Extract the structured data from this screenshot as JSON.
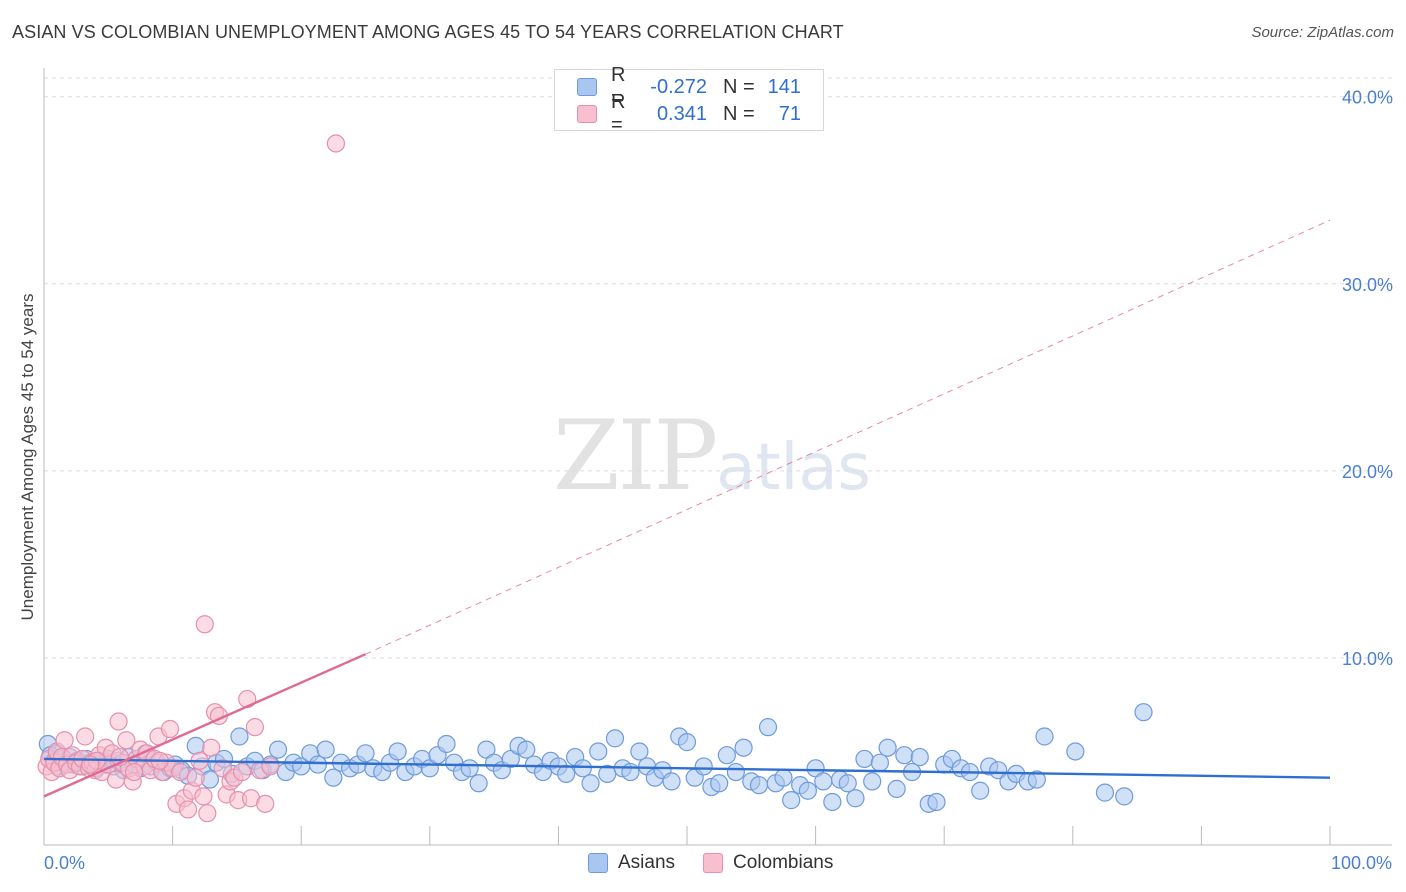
{
  "title": "ASIAN VS COLOMBIAN UNEMPLOYMENT AMONG AGES 45 TO 54 YEARS CORRELATION CHART",
  "source": "Source: ZipAtlas.com",
  "watermark": {
    "zip": "ZIP",
    "atlas": "atlas"
  },
  "legend": {
    "rows": [
      {
        "r_label": "R =",
        "r_value": "-0.272",
        "n_label": "N =",
        "n_value": "141",
        "color": "#a9c6f0",
        "border": "#6f9bdc"
      },
      {
        "r_label": "R =",
        "r_value": "0.341",
        "n_label": "N =",
        "n_value": "71",
        "color": "#f7bfd0",
        "border": "#e78fab"
      }
    ]
  },
  "bottom_legend": [
    {
      "label": "Asians",
      "color": "#a9c6f0",
      "border": "#6f9bdc"
    },
    {
      "label": "Colombians",
      "color": "#f7bfd0",
      "border": "#e78fab"
    }
  ],
  "chart_data": {
    "type": "scatter",
    "title": "ASIAN VS COLOMBIAN UNEMPLOYMENT AMONG AGES 45 TO 54 YEARS CORRELATION CHART",
    "xlabel": "",
    "ylabel": "Unemployment Among Ages 45 to 54 years",
    "xlim": [
      0,
      100
    ],
    "ylim": [
      0,
      41
    ],
    "x_tick_labels": [
      "0.0%",
      "100.0%"
    ],
    "y_ticks": [
      10,
      20,
      30,
      40
    ],
    "y_tick_labels": [
      "10.0%",
      "20.0%",
      "30.0%",
      "40.0%"
    ],
    "grid": true,
    "series": [
      {
        "name": "Asians",
        "color": "#a9c6f0",
        "stroke": "#6f9bdc",
        "trend": {
          "x0": 0,
          "y0": 4.6,
          "x1": 100,
          "y1": 3.6,
          "color": "#2f6fd0",
          "dashed_extension": false
        },
        "points": [
          [
            0.3,
            5.4
          ],
          [
            0.5,
            4.8
          ],
          [
            0.8,
            4.5
          ],
          [
            1,
            4.9
          ],
          [
            1.2,
            4.2
          ],
          [
            1.5,
            4.6
          ],
          [
            1.8,
            4.4
          ],
          [
            2,
            4.7
          ],
          [
            2.3,
            4.3
          ],
          [
            2.6,
            4.5
          ],
          [
            3,
            4.2
          ],
          [
            3.3,
            4.6
          ],
          [
            3.6,
            4.4
          ],
          [
            4,
            4.1
          ],
          [
            4.3,
            4.5
          ],
          [
            4.7,
            4.3
          ],
          [
            5,
            4.6
          ],
          [
            5.4,
            4.2
          ],
          [
            5.8,
            4.5
          ],
          [
            6.2,
            4.0
          ],
          [
            6.6,
            4.7
          ],
          [
            7,
            4.3
          ],
          [
            7.5,
            4.1
          ],
          [
            7.9,
            4.9
          ],
          [
            8.3,
            4.2
          ],
          [
            8.8,
            4.4
          ],
          [
            9.3,
            3.9
          ],
          [
            9.8,
            4.1
          ],
          [
            10.2,
            4.3
          ],
          [
            10.7,
            4.0
          ],
          [
            11.2,
            3.7
          ],
          [
            11.8,
            5.3
          ],
          [
            12.3,
            4.2
          ],
          [
            12.9,
            3.5
          ],
          [
            13.4,
            4.4
          ],
          [
            14,
            4.6
          ],
          [
            14.6,
            3.8
          ],
          [
            15.2,
            5.8
          ],
          [
            15.8,
            4.2
          ],
          [
            16.4,
            4.5
          ],
          [
            17,
            4.0
          ],
          [
            17.6,
            4.3
          ],
          [
            18.2,
            5.1
          ],
          [
            18.8,
            3.9
          ],
          [
            19.4,
            4.4
          ],
          [
            20,
            4.2
          ],
          [
            20.7,
            4.9
          ],
          [
            21.3,
            4.3
          ],
          [
            21.9,
            5.1
          ],
          [
            22.5,
            3.6
          ],
          [
            23.1,
            4.4
          ],
          [
            23.8,
            4.1
          ],
          [
            24.4,
            4.3
          ],
          [
            25,
            4.9
          ],
          [
            25.6,
            4.1
          ],
          [
            26.3,
            3.9
          ],
          [
            26.9,
            4.4
          ],
          [
            27.5,
            5.0
          ],
          [
            28.1,
            3.9
          ],
          [
            28.8,
            4.2
          ],
          [
            29.4,
            4.6
          ],
          [
            30,
            4.1
          ],
          [
            30.6,
            4.8
          ],
          [
            31.3,
            5.4
          ],
          [
            31.9,
            4.4
          ],
          [
            32.5,
            3.9
          ],
          [
            33.1,
            4.1
          ],
          [
            33.8,
            3.3
          ],
          [
            34.4,
            5.1
          ],
          [
            35,
            4.4
          ],
          [
            35.6,
            4.0
          ],
          [
            36.3,
            4.6
          ],
          [
            36.9,
            5.3
          ],
          [
            37.5,
            5.1
          ],
          [
            38.1,
            4.3
          ],
          [
            38.8,
            3.9
          ],
          [
            39.4,
            4.5
          ],
          [
            40,
            4.2
          ],
          [
            40.6,
            3.8
          ],
          [
            41.3,
            4.7
          ],
          [
            41.9,
            4.1
          ],
          [
            42.5,
            3.3
          ],
          [
            43.1,
            5.0
          ],
          [
            43.8,
            3.8
          ],
          [
            44.4,
            5.7
          ],
          [
            45,
            4.1
          ],
          [
            45.6,
            3.9
          ],
          [
            46.3,
            5.0
          ],
          [
            46.9,
            4.2
          ],
          [
            47.5,
            3.6
          ],
          [
            48.1,
            4.0
          ],
          [
            48.8,
            3.4
          ],
          [
            49.4,
            5.8
          ],
          [
            50,
            5.5
          ],
          [
            50.6,
            3.6
          ],
          [
            51.3,
            4.2
          ],
          [
            51.9,
            3.1
          ],
          [
            52.5,
            3.3
          ],
          [
            53.1,
            4.8
          ],
          [
            53.8,
            3.9
          ],
          [
            54.4,
            5.2
          ],
          [
            55,
            3.4
          ],
          [
            55.6,
            3.2
          ],
          [
            56.3,
            6.3
          ],
          [
            56.9,
            3.3
          ],
          [
            57.5,
            3.6
          ],
          [
            58.1,
            2.4
          ],
          [
            58.8,
            3.2
          ],
          [
            59.4,
            2.9
          ],
          [
            60,
            4.1
          ],
          [
            60.6,
            3.4
          ],
          [
            61.3,
            2.3
          ],
          [
            61.9,
            3.5
          ],
          [
            62.5,
            3.3
          ],
          [
            63.1,
            2.5
          ],
          [
            63.8,
            4.6
          ],
          [
            64.4,
            3.4
          ],
          [
            65,
            4.4
          ],
          [
            65.6,
            5.2
          ],
          [
            66.3,
            3.0
          ],
          [
            66.9,
            4.8
          ],
          [
            67.5,
            3.9
          ],
          [
            68.1,
            4.7
          ],
          [
            68.8,
            2.2
          ],
          [
            69.4,
            2.3
          ],
          [
            70,
            4.3
          ],
          [
            70.6,
            4.6
          ],
          [
            71.3,
            4.1
          ],
          [
            72,
            3.9
          ],
          [
            72.8,
            2.9
          ],
          [
            73.5,
            4.2
          ],
          [
            74.2,
            4.0
          ],
          [
            75,
            3.4
          ],
          [
            75.6,
            3.8
          ],
          [
            76.5,
            3.4
          ],
          [
            77.2,
            3.5
          ],
          [
            77.8,
            5.8
          ],
          [
            80.2,
            5.0
          ],
          [
            82.5,
            2.8
          ],
          [
            84,
            2.6
          ],
          [
            85.5,
            7.1
          ]
        ]
      },
      {
        "name": "Colombians",
        "color": "#f7bfd0",
        "stroke": "#e78fab",
        "trend": {
          "x0": 0,
          "y0": 2.6,
          "x1": 25,
          "y1": 10.2,
          "dash_to_x": 100,
          "dash_to_y": 33.4,
          "color": "#e06a91",
          "dashed_extension": true
        },
        "points": [
          [
            0.2,
            4.2
          ],
          [
            0.4,
            4.6
          ],
          [
            0.6,
            3.9
          ],
          [
            0.8,
            4.4
          ],
          [
            1,
            5.0
          ],
          [
            1.2,
            4.1
          ],
          [
            1.4,
            4.7
          ],
          [
            1.6,
            5.6
          ],
          [
            1.8,
            4.3
          ],
          [
            2,
            4.0
          ],
          [
            2.2,
            4.8
          ],
          [
            2.5,
            4.4
          ],
          [
            2.8,
            4.2
          ],
          [
            3,
            4.6
          ],
          [
            3.2,
            5.8
          ],
          [
            3.5,
            4.1
          ],
          [
            3.8,
            4.4
          ],
          [
            4,
            4.0
          ],
          [
            4.3,
            4.8
          ],
          [
            4.5,
            3.9
          ],
          [
            4.8,
            5.2
          ],
          [
            5,
            4.3
          ],
          [
            5.3,
            4.9
          ],
          [
            5.6,
            3.5
          ],
          [
            5.8,
            6.6
          ],
          [
            6.1,
            4.4
          ],
          [
            6.4,
            5.6
          ],
          [
            6.6,
            4.1
          ],
          [
            6.9,
            3.4
          ],
          [
            7.2,
            4.6
          ],
          [
            7.5,
            5.1
          ],
          [
            7.8,
            4.2
          ],
          [
            8,
            4.9
          ],
          [
            8.3,
            4.0
          ],
          [
            8.6,
            4.6
          ],
          [
            8.9,
            5.8
          ],
          [
            9.2,
            3.9
          ],
          [
            9.5,
            4.4
          ],
          [
            9.8,
            6.2
          ],
          [
            10,
            4.1
          ],
          [
            10.3,
            2.2
          ],
          [
            10.6,
            3.9
          ],
          [
            10.9,
            2.5
          ],
          [
            11.2,
            1.9
          ],
          [
            11.5,
            2.9
          ],
          [
            11.8,
            3.6
          ],
          [
            12.1,
            4.5
          ],
          [
            12.4,
            2.6
          ],
          [
            12.7,
            1.7
          ],
          [
            13,
            5.2
          ],
          [
            13.3,
            7.1
          ],
          [
            13.6,
            6.9
          ],
          [
            13.9,
            4.1
          ],
          [
            14.2,
            2.7
          ],
          [
            14.5,
            3.4
          ],
          [
            14.8,
            3.6
          ],
          [
            15.1,
            2.4
          ],
          [
            15.4,
            3.9
          ],
          [
            15.8,
            7.8
          ],
          [
            16.1,
            2.5
          ],
          [
            16.4,
            6.3
          ],
          [
            16.8,
            4.0
          ],
          [
            17.2,
            2.2
          ],
          [
            17.6,
            4.2
          ],
          [
            12.5,
            11.8
          ],
          [
            22.7,
            37.5
          ],
          [
            4.1,
            4.5
          ],
          [
            5.9,
            4.7
          ],
          [
            7,
            3.9
          ],
          [
            9,
            4.5
          ],
          [
            3.6,
            4.3
          ]
        ]
      }
    ]
  }
}
